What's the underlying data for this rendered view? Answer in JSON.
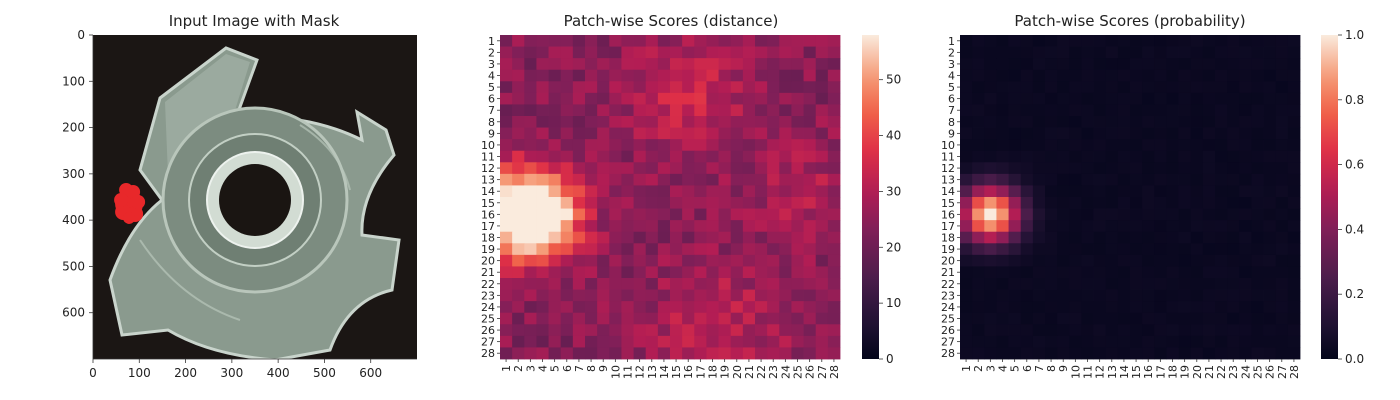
{
  "chart_data": [
    {
      "type": "image",
      "title": "Input Image with Mask",
      "x_ticks": [
        0,
        100,
        200,
        300,
        400,
        500,
        600
      ],
      "y_ticks": [
        0,
        100,
        200,
        300,
        400,
        500,
        600
      ],
      "xlim": [
        0,
        700
      ],
      "ylim": [
        700,
        0
      ],
      "mask_color": "#e8282a",
      "mask_center": [
        78,
        365
      ],
      "background_color": "#1b1614",
      "part_color": "#8a9a8e"
    },
    {
      "type": "heatmap",
      "title": "Patch-wise Scores (distance)",
      "rows": 28,
      "cols": 28,
      "x_tick_labels": [
        "1",
        "2",
        "3",
        "4",
        "5",
        "6",
        "7",
        "8",
        "9",
        "10",
        "11",
        "12",
        "13",
        "14",
        "15",
        "16",
        "17",
        "18",
        "19",
        "20",
        "21",
        "22",
        "23",
        "24",
        "25",
        "26",
        "27",
        "28"
      ],
      "y_tick_labels": [
        "1",
        "2",
        "3",
        "4",
        "5",
        "6",
        "7",
        "8",
        "9",
        "10",
        "11",
        "12",
        "13",
        "14",
        "15",
        "16",
        "17",
        "18",
        "19",
        "20",
        "21",
        "22",
        "23",
        "24",
        "25",
        "26",
        "27",
        "28"
      ],
      "colorbar": {
        "min": 0,
        "max": 58,
        "ticks": [
          0,
          10,
          20,
          30,
          40,
          50
        ],
        "colormap": "rocket"
      },
      "baseline": 24,
      "hotspots": [
        {
          "row": 15.5,
          "col": 2.5,
          "peak": 58,
          "radius": 2.6
        },
        {
          "row": 5.5,
          "col": 15.5,
          "peak": 10,
          "radius": 3.5
        },
        {
          "row": 25.5,
          "col": 18.0,
          "peak": 8,
          "radius": 4.0
        },
        {
          "row": 13.5,
          "col": 25.0,
          "peak": 6,
          "radius": 3.0
        }
      ]
    },
    {
      "type": "heatmap",
      "title": "Patch-wise Scores (probability)",
      "rows": 28,
      "cols": 28,
      "x_tick_labels": [
        "1",
        "2",
        "3",
        "4",
        "5",
        "6",
        "7",
        "8",
        "9",
        "10",
        "11",
        "12",
        "13",
        "14",
        "15",
        "16",
        "17",
        "18",
        "19",
        "20",
        "21",
        "22",
        "23",
        "24",
        "25",
        "26",
        "27",
        "28"
      ],
      "y_tick_labels": [
        "1",
        "2",
        "3",
        "4",
        "5",
        "6",
        "7",
        "8",
        "9",
        "10",
        "11",
        "12",
        "13",
        "14",
        "15",
        "16",
        "17",
        "18",
        "19",
        "20",
        "21",
        "22",
        "23",
        "24",
        "25",
        "26",
        "27",
        "28"
      ],
      "colorbar": {
        "min": 0,
        "max": 1,
        "ticks": [
          "0.0",
          "0.2",
          "0.4",
          "0.6",
          "0.8",
          "1.0"
        ],
        "colormap": "rocket"
      },
      "baseline": 0.02,
      "hotspots": [
        {
          "row": 15.5,
          "col": 2.5,
          "peak": 1.0,
          "radius": 1.7
        }
      ]
    }
  ]
}
